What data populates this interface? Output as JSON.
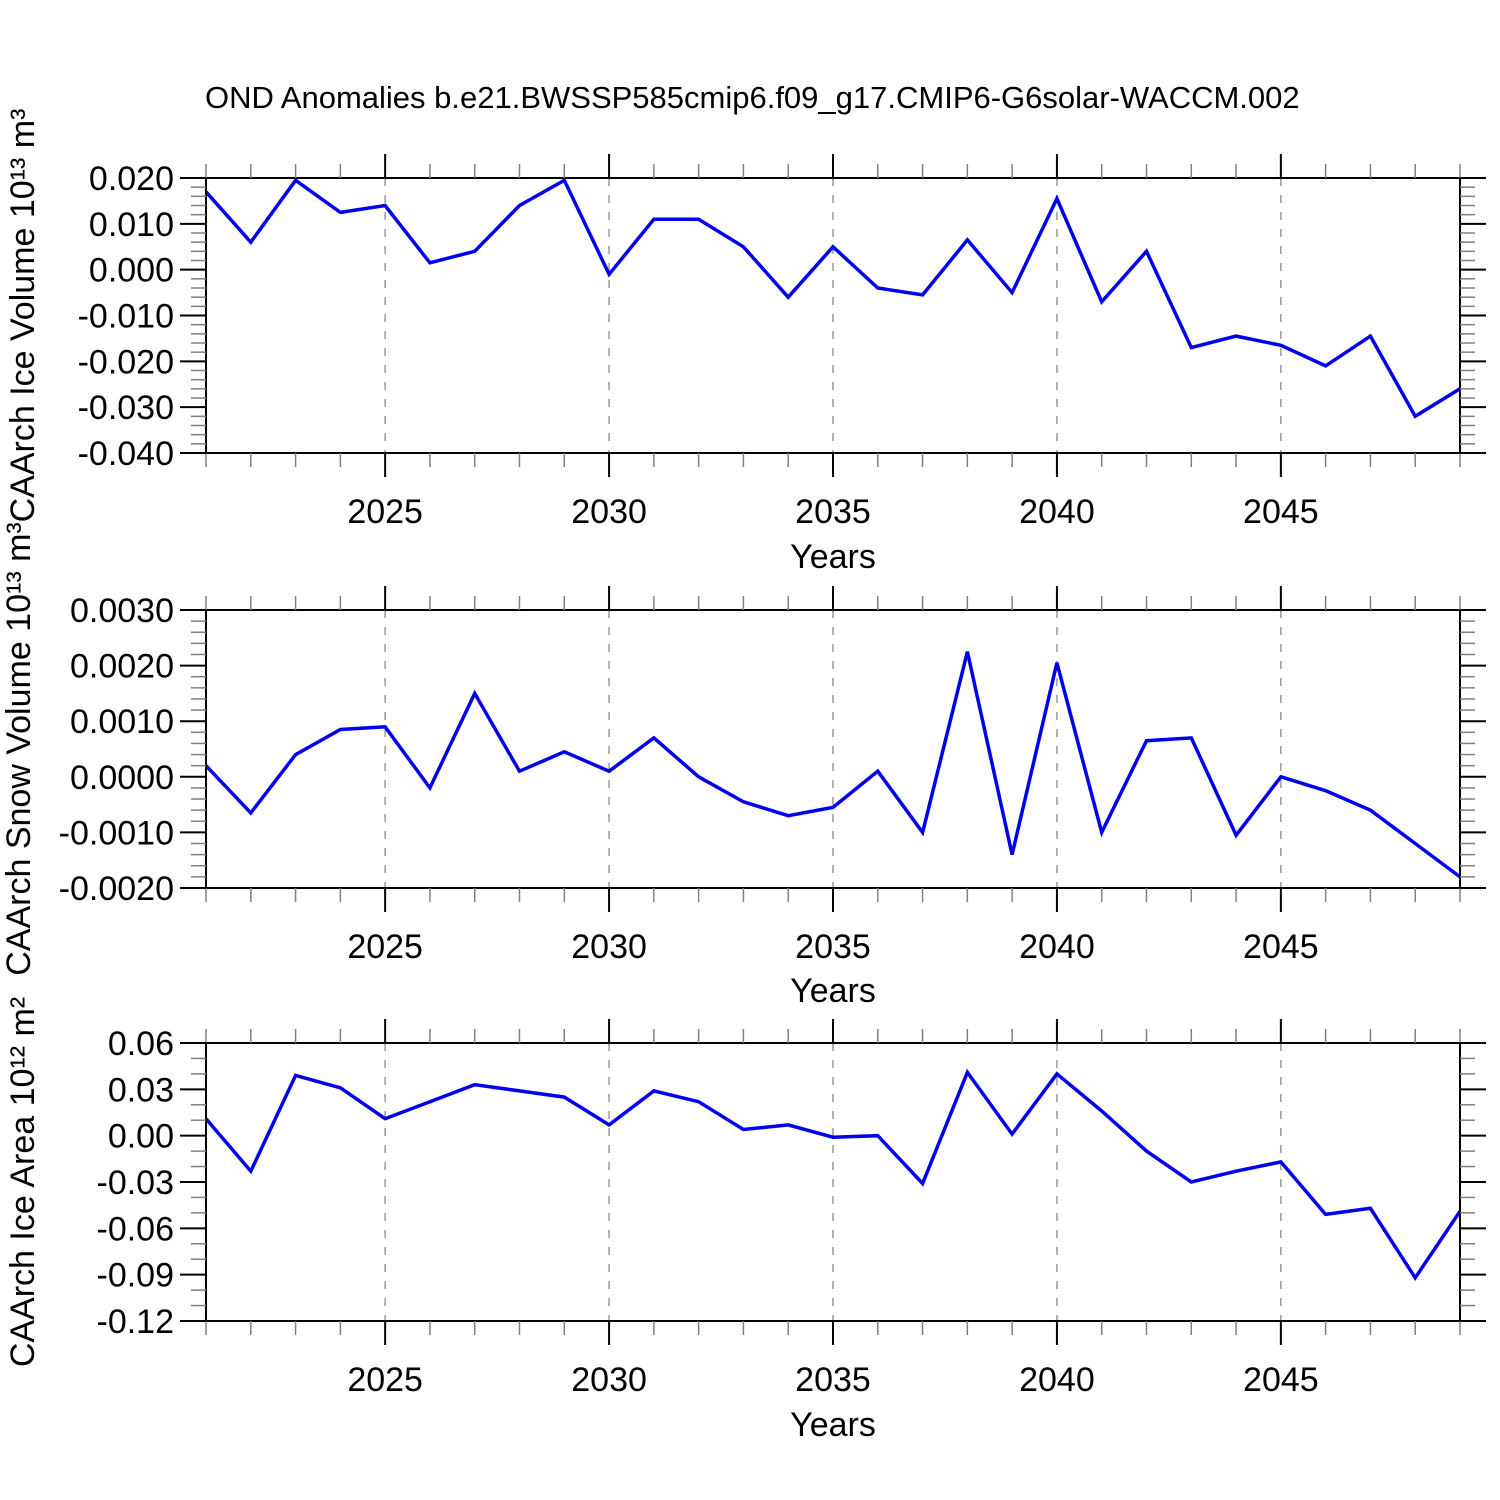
{
  "title": "OND Anomalies b.e21.BWSSP585cmip6.f09_g17.CMIP6-G6solar-WACCM.002",
  "colors": {
    "line": "#0000ee",
    "frame": "#000000",
    "major_tick": "#000000",
    "minor_tick": "#808080",
    "grid_dashed": "#999999"
  },
  "x_axis": {
    "label": "Years",
    "start_year": 2021,
    "end_year": 2049,
    "major_ticks": [
      2025,
      2030,
      2035,
      2040,
      2045
    ],
    "minor_step": 1
  },
  "chart_data": [
    {
      "type": "line",
      "ylabel": "CAArch Ice Volume 10¹³ m³",
      "xlabel": "Years",
      "x_range": [
        2021,
        2049
      ],
      "x_step": 1,
      "values": [
        0.017,
        0.006,
        0.0195,
        0.0125,
        0.014,
        0.0015,
        0.004,
        0.014,
        0.0195,
        -0.001,
        0.011,
        0.011,
        0.005,
        -0.006,
        0.005,
        -0.004,
        -0.0055,
        0.0065,
        -0.005,
        0.0155,
        -0.007,
        0.004,
        -0.017,
        -0.0145,
        -0.0165,
        -0.021,
        -0.0145,
        -0.032,
        -0.026
      ],
      "ylim": [
        -0.04,
        0.02
      ],
      "ytick_major": 0.01,
      "ytick_minor": 0.002,
      "ytick_labels": [
        "0.020",
        "0.010",
        "0.000",
        "-0.010",
        "-0.020",
        "-0.030",
        "-0.040"
      ],
      "x_major_ticks": [
        2025,
        2030,
        2035,
        2040,
        2045
      ],
      "grid": "vertical dashed lines at major x ticks"
    },
    {
      "type": "line",
      "ylabel": "CAArch Snow Volume 10¹³ m³",
      "xlabel": "Years",
      "x_range": [
        2021,
        2049
      ],
      "x_step": 1,
      "values": [
        0.0002,
        -0.00065,
        0.0004,
        0.00085,
        0.0009,
        -0.0002,
        0.0015,
        0.0001,
        0.00045,
        0.0001,
        0.0007,
        0.0,
        -0.00045,
        -0.0007,
        -0.00055,
        0.0001,
        -0.001,
        0.00225,
        -0.0014,
        0.00205,
        -0.001,
        0.00065,
        0.0007,
        -0.00105,
        0.0,
        -0.00025,
        -0.0006,
        -0.0012,
        -0.0018
      ],
      "ylim": [
        -0.002,
        0.003
      ],
      "ytick_major": 0.001,
      "ytick_minor": 0.0002,
      "ytick_labels": [
        "0.0030",
        "0.0020",
        "0.0010",
        "0.0000",
        "-0.0010",
        "-0.0020"
      ],
      "x_major_ticks": [
        2025,
        2030,
        2035,
        2040,
        2045
      ],
      "grid": "vertical dashed lines at major x ticks"
    },
    {
      "type": "line",
      "ylabel": "CAArch Ice Area 10¹² m²",
      "xlabel": "Years",
      "x_range": [
        2021,
        2049
      ],
      "x_step": 1,
      "values": [
        0.011,
        -0.023,
        0.039,
        0.031,
        0.011,
        0.022,
        0.033,
        0.029,
        0.025,
        0.007,
        0.029,
        0.022,
        0.004,
        0.007,
        -0.001,
        0.0,
        -0.031,
        0.041,
        0.001,
        0.04,
        0.016,
        -0.01,
        -0.03,
        -0.023,
        -0.017,
        -0.051,
        -0.047,
        -0.092,
        -0.049
      ],
      "ylim": [
        -0.12,
        0.06
      ],
      "ytick_major": 0.03,
      "ytick_minor": 0.01,
      "ytick_labels": [
        "0.06",
        "0.03",
        "0.00",
        "-0.03",
        "-0.06",
        "-0.09",
        "-0.12"
      ],
      "x_major_ticks": [
        2025,
        2030,
        2035,
        2040,
        2045
      ],
      "grid": "vertical dashed lines at major x ticks"
    }
  ]
}
